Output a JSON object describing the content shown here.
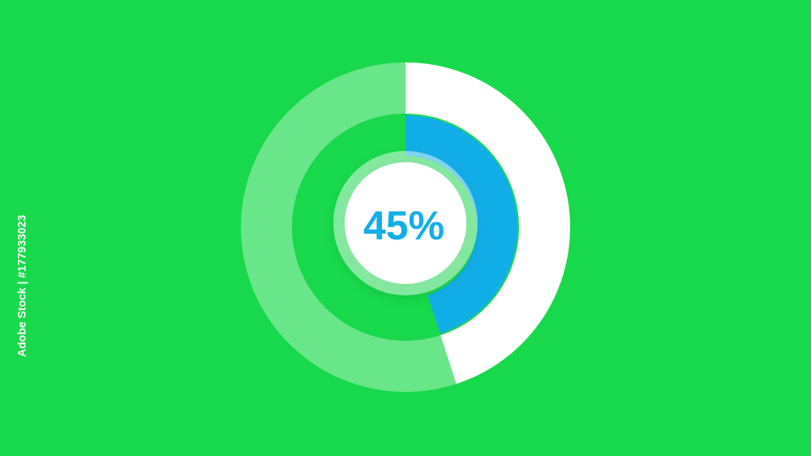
{
  "chart_data": {
    "type": "donut",
    "values": [
      45
    ],
    "value_labels": [
      "45%"
    ],
    "colors": {
      "background": "#17d94b",
      "outer": "#ffffff",
      "inner": "#12aee8",
      "label": "#12aee8"
    },
    "source": "Adobe Stock | #177933023"
  }
}
